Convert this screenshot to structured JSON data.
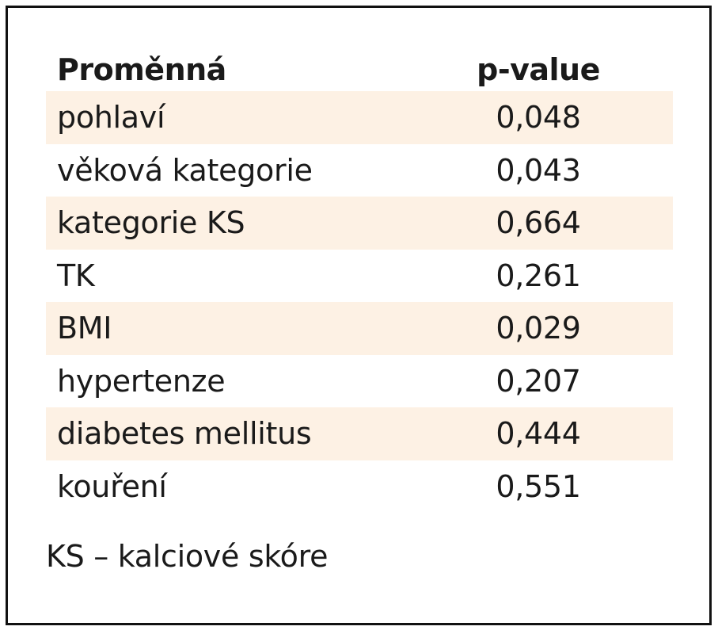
{
  "table": {
    "headers": {
      "variable": "Proměnná",
      "pvalue": "p-value"
    },
    "rows": [
      {
        "variable": "pohlaví",
        "pvalue": "0,048"
      },
      {
        "variable": "věková kategorie",
        "pvalue": "0,043"
      },
      {
        "variable": "kategorie KS",
        "pvalue": "0,664"
      },
      {
        "variable": "TK",
        "pvalue": "0,261"
      },
      {
        "variable": "BMI",
        "pvalue": "0,029"
      },
      {
        "variable": "hypertenze",
        "pvalue": "0,207"
      },
      {
        "variable": "diabetes mellitus",
        "pvalue": "0,444"
      },
      {
        "variable": "kouření",
        "pvalue": "0,551"
      }
    ],
    "footnote": "KS – kalciové skóre"
  },
  "colors": {
    "shaded_row": "#fdf1e4",
    "border": "#111111",
    "text": "#1a1a1a"
  }
}
